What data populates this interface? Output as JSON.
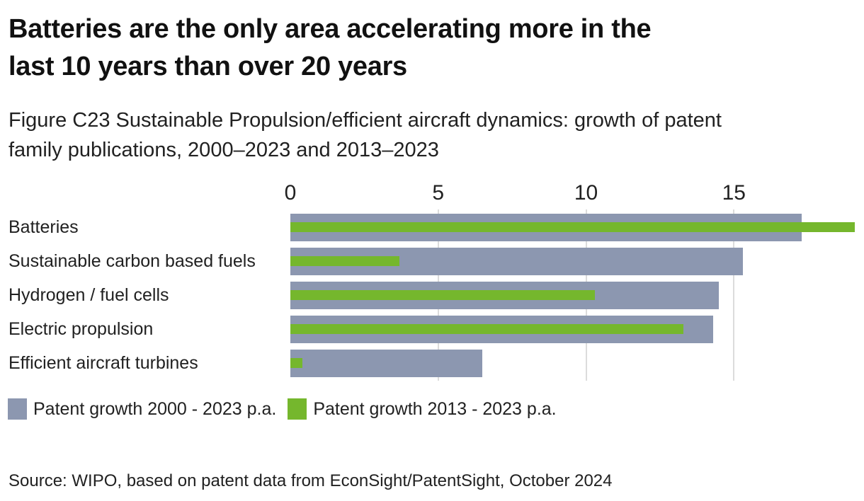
{
  "header": {
    "title_line1": "Batteries are the only area accelerating more in the",
    "title_line2": "last 10 years than over 20 years",
    "subtitle_line1": "Figure C23 Sustainable Propulsion/efficient aircraft dynamics: growth of patent",
    "subtitle_line2": "family publications, 2000–2023 and 2013–2023"
  },
  "chart_data": {
    "type": "bar",
    "orientation": "horizontal",
    "categories": [
      "Batteries",
      "Sustainable carbon based fuels",
      "Hydrogen / fuel cells",
      "Electric propulsion",
      "Efficient aircraft turbines"
    ],
    "series": [
      {
        "name": "Patent growth 2000 - 2023 p.a.",
        "color": "#8c97b0",
        "values": [
          17.3,
          15.3,
          14.5,
          14.3,
          6.5
        ]
      },
      {
        "name": "Patent growth 2013 - 2023 p.a.",
        "color": "#75b72d",
        "values": [
          19.1,
          3.7,
          10.3,
          13.3,
          0.4
        ]
      }
    ],
    "xlim": [
      0,
      19.4
    ],
    "xticks": [
      0,
      5,
      10,
      15
    ],
    "grid": "vertical gridlines at 5, 10, 15",
    "legend_position": "bottom-left",
    "axis_position": "top"
  },
  "footer": {
    "source": "Source: WIPO, based on patent data from EconSight/PatentSight, October 2024"
  },
  "colors": {
    "series_2000_2023": "#8c97b0",
    "series_2013_2023": "#75b72d",
    "gridline": "#dcdcdc",
    "title_text": "#111111",
    "body_text": "#212121",
    "background": "#ffffff"
  }
}
